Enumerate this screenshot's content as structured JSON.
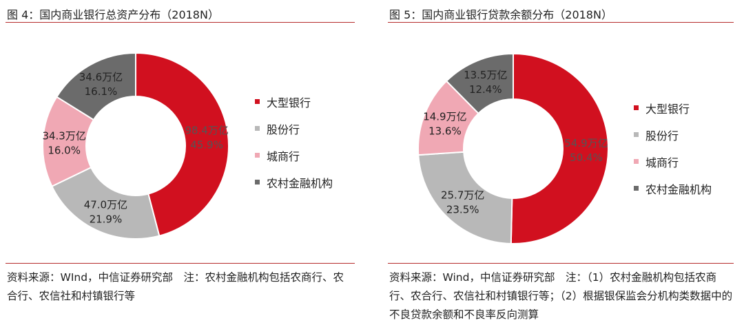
{
  "chart_data": [
    {
      "type": "pie",
      "title": "图 4：国内商业银行总资产分布（2018N）",
      "unit": "万亿",
      "categories": [
        "大型银行",
        "股份行",
        "城商行",
        "农村金融机构"
      ],
      "values": [
        98.4,
        47.0,
        34.3,
        34.6
      ],
      "percent_labels": [
        "45.9%",
        "21.9%",
        "16.0%",
        "16.1%"
      ],
      "value_labels": [
        "98.4万亿",
        "47.0万亿",
        "34.3万亿",
        "34.6万亿"
      ],
      "colors": [
        "#d1101f",
        "#b8b8b8",
        "#f0a8b4",
        "#6b6b6b"
      ],
      "donut": true,
      "legend_position": "right",
      "source": "资料来源：WInd，中信证券研究部　注：农村金融机构包括农商行、农合行、农信社和村镇银行等"
    },
    {
      "type": "pie",
      "title": "图 5：国内商业银行贷款余额分布（2018N）",
      "unit": "万亿",
      "categories": [
        "大型银行",
        "股份行",
        "城商行",
        "农村金融机构"
      ],
      "values": [
        54.9,
        25.7,
        14.9,
        13.5
      ],
      "percent_labels": [
        "50.4%",
        "23.5%",
        "13.6%",
        "12.4%"
      ],
      "value_labels": [
        "54.9万亿",
        "25.7万亿",
        "14.9万亿",
        "13.5万亿"
      ],
      "colors": [
        "#d1101f",
        "#b8b8b8",
        "#f0a8b4",
        "#6b6b6b"
      ],
      "donut": true,
      "legend_position": "right",
      "source": "资料来源：Wind，中信证券研究部　注：（1）农村金融机构包括农商行、农合行、农信社和村镇银行等；（2）根据银保监会分机构类数据中的不良贷款余额和不良率反向测算"
    }
  ]
}
